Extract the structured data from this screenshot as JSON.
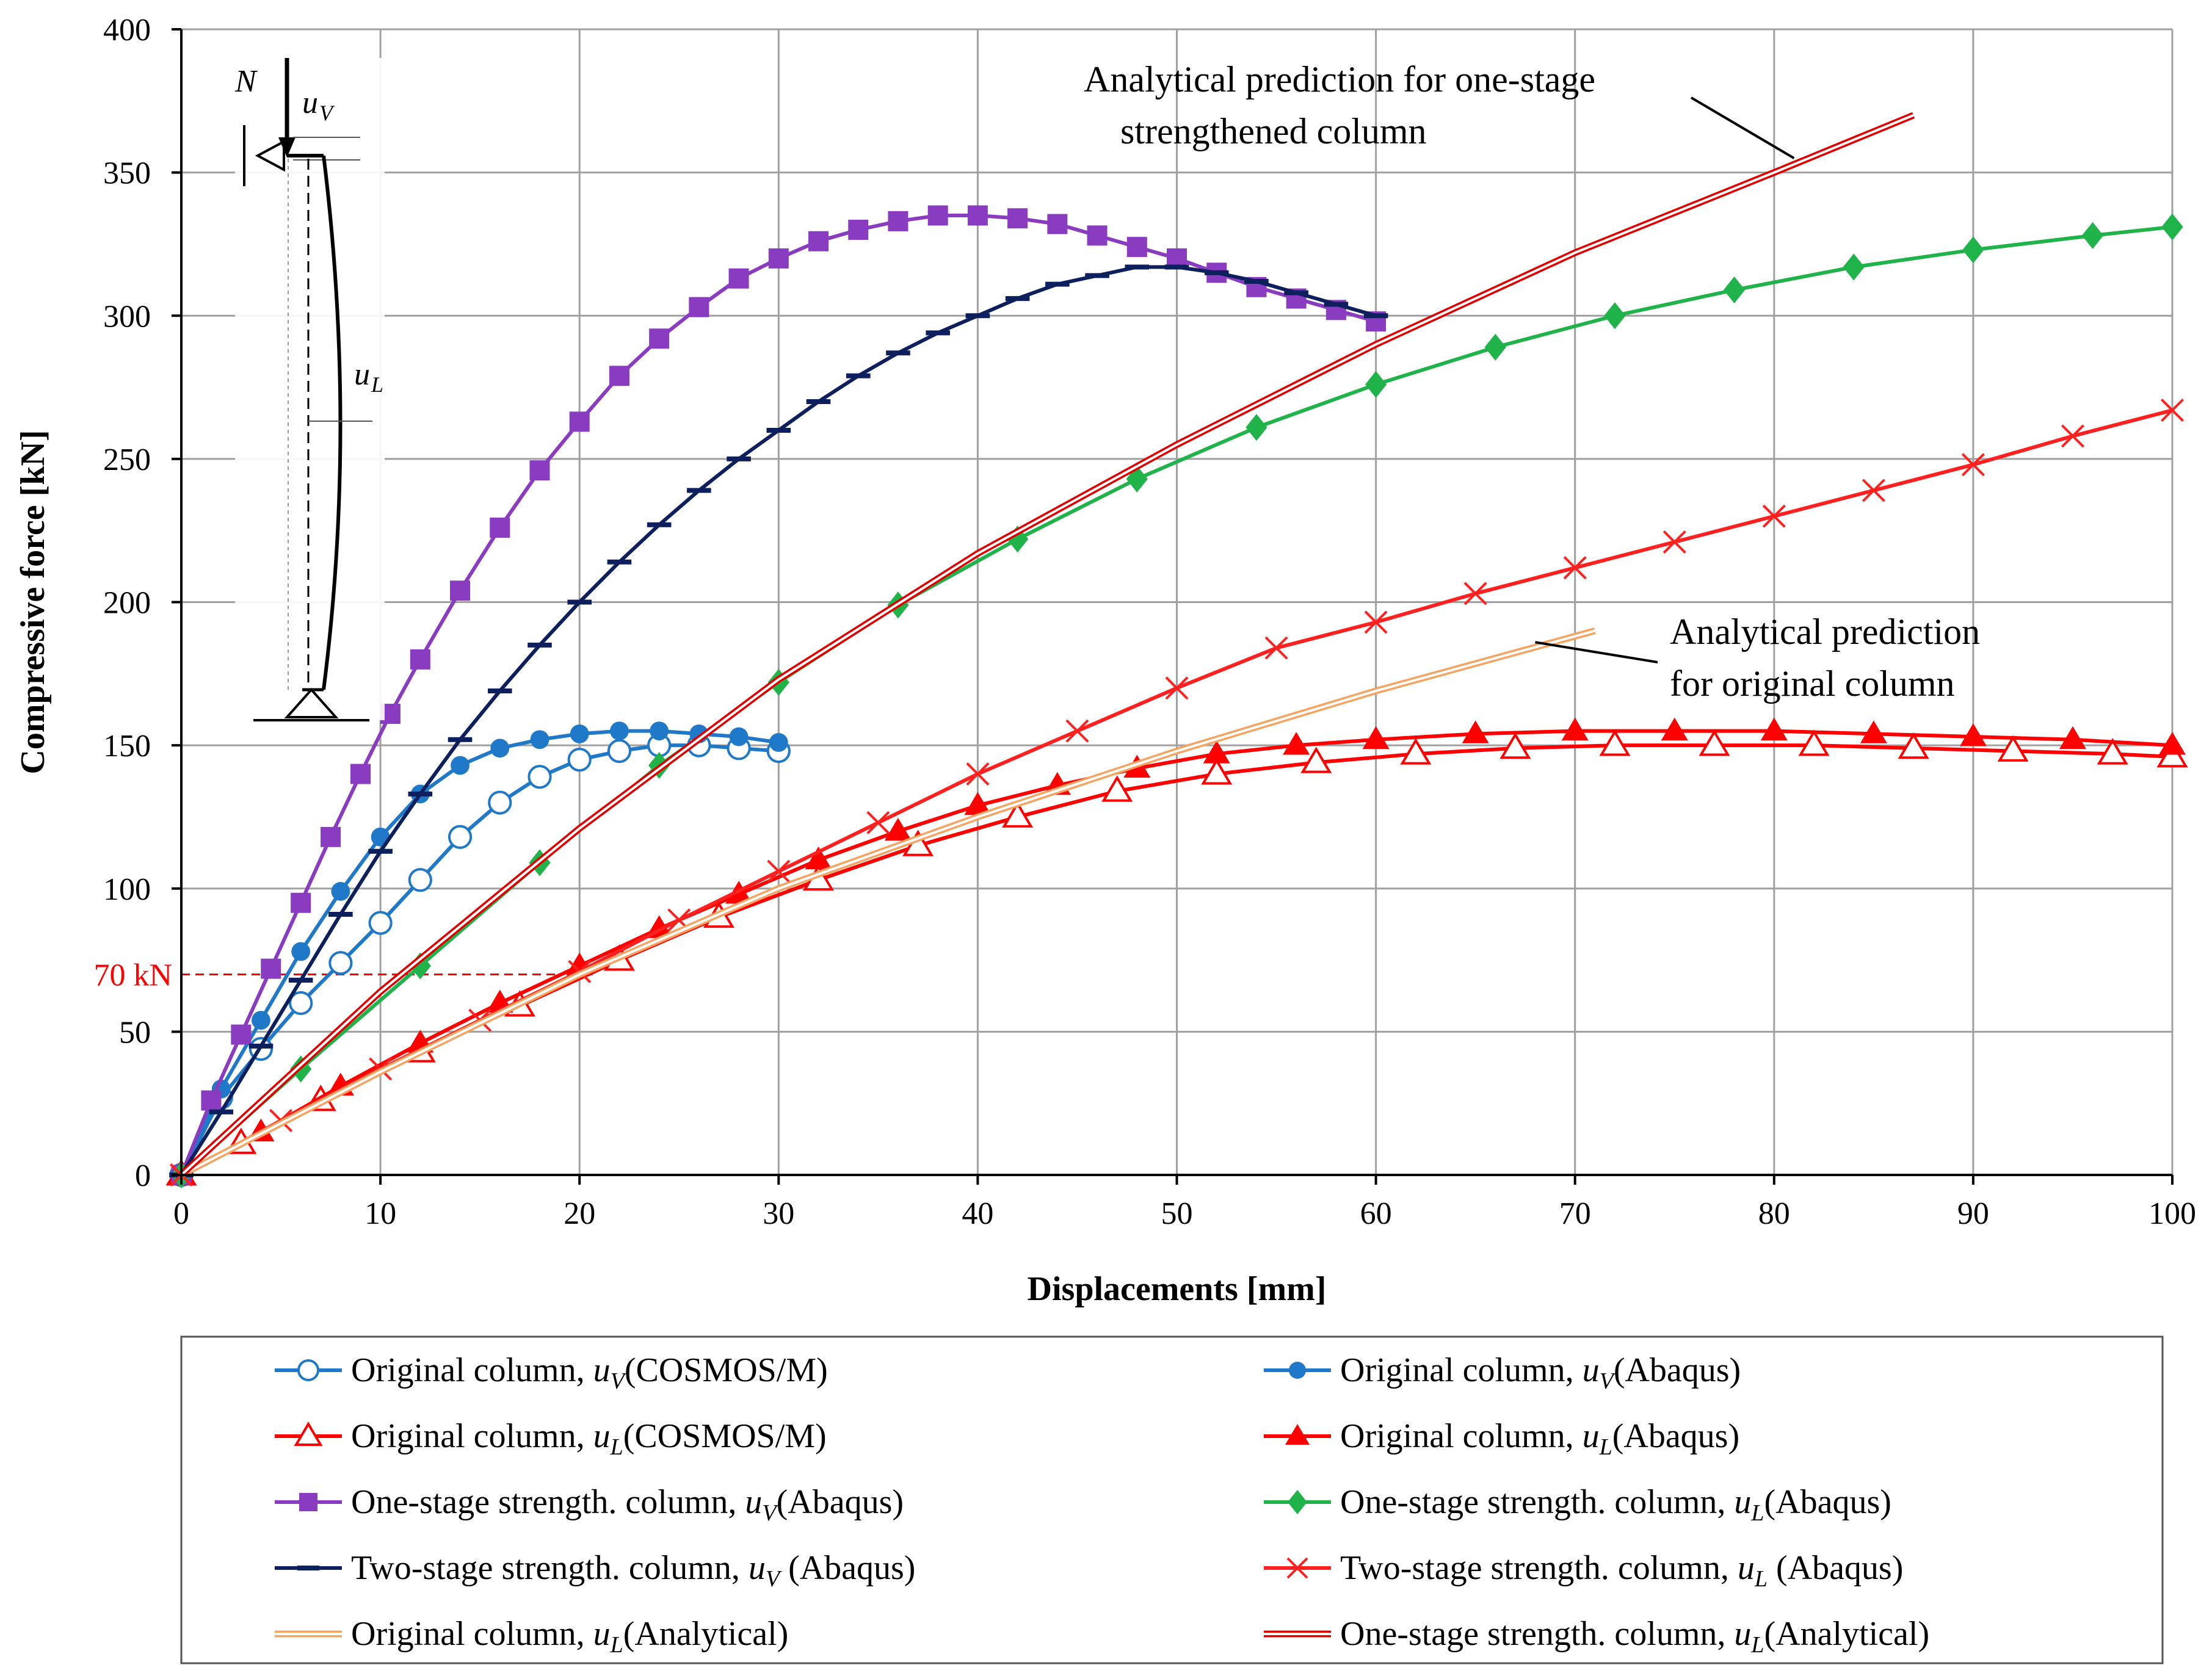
{
  "chart_data": {
    "type": "line",
    "xlabel": "Displacements [mm]",
    "ylabel": "Compressive force [kN]",
    "xlim": [
      0,
      100
    ],
    "ylim": [
      0,
      400
    ],
    "xticks": [
      0,
      10,
      20,
      30,
      40,
      50,
      60,
      70,
      80,
      90,
      100
    ],
    "yticks": [
      0,
      50,
      100,
      150,
      200,
      250,
      300,
      350,
      400
    ],
    "grid": true,
    "reference_line": {
      "y": 70,
      "label": "70 kN",
      "color": "#ff0000"
    },
    "annotations": [
      {
        "lines": [
          "Analytical prediction for one-stage",
          "strengthened column"
        ],
        "points_to": [
          81,
          355
        ]
      },
      {
        "lines": [
          "Analytical prediction",
          "for original column"
        ],
        "points_to": [
          68,
          186
        ]
      }
    ],
    "inset": {
      "force_label": "N",
      "vertical_disp_label": "u",
      "vertical_disp_sub": "V",
      "lateral_disp_label": "u",
      "lateral_disp_sub": "L"
    },
    "series": [
      {
        "name": "Original column, u_V (COSMOS/M)",
        "legend_main": "Original  column, ",
        "legend_u": "u",
        "legend_sub": "V",
        "legend_tail": "(COSMOS/M)",
        "color": "#1f78c8",
        "marker": "circle-open",
        "x": [
          0,
          2,
          4,
          6,
          8,
          10,
          12,
          14,
          16,
          18,
          20,
          22,
          24,
          26,
          28,
          30
        ],
        "y": [
          0,
          27,
          44,
          60,
          74,
          88,
          103,
          118,
          130,
          139,
          145,
          148,
          150,
          150,
          149,
          148
        ]
      },
      {
        "name": "Original column, u_V (Abaqus)",
        "legend_main": "Original  column, ",
        "legend_u": "u",
        "legend_sub": "V",
        "legend_tail": "(Abaqus)",
        "color": "#1f78c8",
        "marker": "circle-filled",
        "x": [
          0,
          2,
          4,
          6,
          8,
          10,
          12,
          14,
          16,
          18,
          20,
          22,
          24,
          26,
          28,
          30
        ],
        "y": [
          0,
          30,
          54,
          78,
          99,
          118,
          133,
          143,
          149,
          152,
          154,
          155,
          155,
          154,
          153,
          151
        ]
      },
      {
        "name": "Original column, u_L (COSMOS/M)",
        "legend_main": "Original  column, ",
        "legend_u": "u",
        "legend_sub": "L",
        "legend_tail": "(COSMOS/M)",
        "color": "#ff0000",
        "marker": "triangle-open",
        "x": [
          0,
          3,
          7,
          12,
          17,
          22,
          27,
          32,
          37,
          42,
          47,
          52,
          57,
          62,
          67,
          72,
          77,
          82,
          87,
          92,
          97,
          100
        ],
        "y": [
          0,
          11,
          26,
          43,
          59,
          75,
          90,
          103,
          115,
          125,
          134,
          140,
          144,
          147,
          149,
          150,
          150,
          150,
          149,
          148,
          147,
          146
        ]
      },
      {
        "name": "Original column, u_L (Abaqus)",
        "legend_main": "Original  column, ",
        "legend_u": "u",
        "legend_sub": "L",
        "legend_tail": "(Abaqus)",
        "color": "#ff0000",
        "marker": "triangle-filled",
        "x": [
          0,
          4,
          8,
          12,
          16,
          20,
          24,
          28,
          32,
          36,
          40,
          44,
          48,
          52,
          56,
          60,
          65,
          70,
          75,
          80,
          85,
          90,
          95,
          100
        ],
        "y": [
          0,
          15,
          31,
          46,
          60,
          73,
          86,
          98,
          110,
          120,
          129,
          136,
          142,
          147,
          150,
          152,
          154,
          155,
          155,
          155,
          154,
          153,
          152,
          150
        ]
      },
      {
        "name": "One-stage strength. column, u_V (Abaqus)",
        "legend_main": "One-stage  strength.  column, ",
        "legend_u": "u",
        "legend_sub": "V",
        "legend_tail": "(Abaqus)",
        "color": "#8a3cc0",
        "marker": "square-filled",
        "x": [
          0,
          1.5,
          3,
          4.5,
          6,
          7.5,
          9,
          10.5,
          12,
          14,
          16,
          18,
          20,
          22,
          24,
          26,
          28,
          30,
          32,
          34,
          36,
          38,
          40,
          42,
          44,
          46,
          48,
          50,
          52,
          54,
          56,
          58,
          60
        ],
        "y": [
          0,
          26,
          49,
          72,
          95,
          118,
          140,
          161,
          180,
          204,
          226,
          246,
          263,
          279,
          292,
          303,
          313,
          320,
          326,
          330,
          333,
          335,
          335,
          334,
          332,
          328,
          324,
          320,
          315,
          310,
          306,
          302,
          298
        ]
      },
      {
        "name": "One-stage strength. column, u_L (Abaqus)",
        "legend_main": "One-stage  strength.  column, ",
        "legend_u": "u",
        "legend_sub": "L",
        "legend_tail": "(Abaqus)",
        "color": "#1fb34a",
        "marker": "diamond-filled",
        "x": [
          0,
          6,
          12,
          18,
          24,
          30,
          36,
          42,
          48,
          54,
          60,
          66,
          72,
          78,
          84,
          90,
          96,
          100
        ],
        "y": [
          0,
          37,
          73,
          109,
          143,
          172,
          199,
          222,
          243,
          261,
          276,
          289,
          300,
          309,
          317,
          323,
          328,
          331
        ]
      },
      {
        "name": "Two-stage strength. column, u_V (Abaqus)",
        "legend_main": "Two-stage  strength.  column, ",
        "legend_u": "u",
        "legend_sub": "V",
        "legend_tail": " (Abaqus)",
        "color": "#0d1f5c",
        "marker": "dash",
        "x": [
          0,
          2,
          4,
          6,
          8,
          10,
          12,
          14,
          16,
          18,
          20,
          22,
          24,
          26,
          28,
          30,
          32,
          34,
          36,
          38,
          40,
          42,
          44,
          46,
          48,
          50,
          52,
          54,
          56,
          58,
          60
        ],
        "y": [
          0,
          22,
          45,
          68,
          91,
          113,
          133,
          152,
          169,
          185,
          200,
          214,
          227,
          239,
          250,
          260,
          270,
          279,
          287,
          294,
          300,
          306,
          311,
          314,
          317,
          317,
          315,
          312,
          308,
          304,
          300
        ]
      },
      {
        "name": "Two-stage strength. column, u_L (Abaqus)",
        "legend_main": "Two-stage  strength.  column, ",
        "legend_u": "u",
        "legend_sub": "L",
        "legend_tail": " (Abaqus)",
        "color": "#ff2020",
        "marker": "x",
        "x": [
          0,
          5,
          10,
          15,
          20,
          25,
          30,
          35,
          40,
          45,
          50,
          55,
          60,
          65,
          70,
          75,
          80,
          85,
          90,
          95,
          100
        ],
        "y": [
          0,
          19,
          37,
          54,
          71,
          89,
          106,
          123,
          140,
          155,
          170,
          184,
          193,
          203,
          212,
          221,
          230,
          239,
          248,
          258,
          267
        ]
      },
      {
        "name": "Original column, u_L (Analytical)",
        "legend_main": "Original  column, ",
        "legend_u": "u",
        "legend_sub": "L",
        "legend_tail": "(Analytical)",
        "color": "#f4a460",
        "marker": "double-line",
        "x": [
          0,
          10,
          20,
          30,
          40,
          50,
          60,
          71
        ],
        "y": [
          0,
          36,
          70,
          100,
          125,
          148,
          169,
          190
        ]
      },
      {
        "name": "One-stage strength. column, u_L (Analytical)",
        "legend_main": "One-stage  strength.  column, ",
        "legend_u": "u",
        "legend_sub": "L",
        "legend_tail": "(Analytical)",
        "color": "#e00000",
        "marker": "double-line",
        "x": [
          0,
          10,
          20,
          30,
          40,
          50,
          60,
          70,
          80,
          87
        ],
        "y": [
          0,
          64,
          121,
          173,
          217,
          255,
          290,
          322,
          350,
          370
        ]
      }
    ]
  }
}
